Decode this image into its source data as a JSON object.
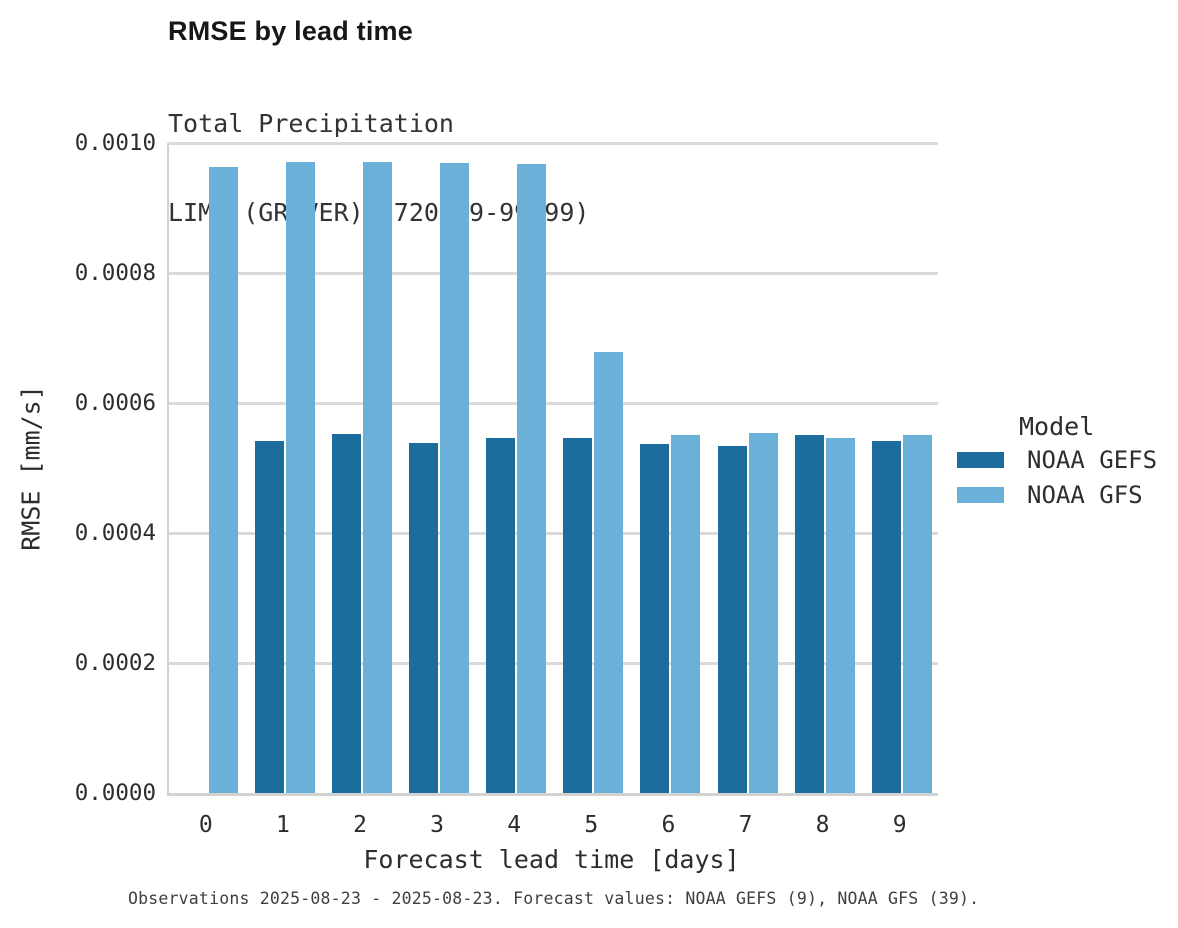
{
  "header": {
    "title": "RMSE by lead time",
    "subtitle_line1": "Total Precipitation",
    "subtitle_line2": "LIMA (GROVER) (720989-99999)"
  },
  "axes": {
    "x_title": "Forecast lead time [days]",
    "y_title": "RMSE [mm/s]"
  },
  "legend": {
    "title": "Model",
    "entries": [
      {
        "label": "NOAA GEFS",
        "color": "#1d6d9c"
      },
      {
        "label": "NOAA GFS",
        "color": "#6ab0d8"
      }
    ]
  },
  "footer": {
    "caption": "Observations 2025-08-23 - 2025-08-23. Forecast values: NOAA GEFS (9), NOAA GFS (39)."
  },
  "chart_data": {
    "type": "bar",
    "title": "RMSE by lead time",
    "subtitle": [
      "Total Precipitation",
      "LIMA (GROVER) (720989-99999)"
    ],
    "xlabel": "Forecast lead time [days]",
    "ylabel": "RMSE [mm/s]",
    "categories": [
      "0",
      "1",
      "2",
      "3",
      "4",
      "5",
      "6",
      "7",
      "8",
      "9"
    ],
    "series": [
      {
        "name": "NOAA GEFS",
        "color": "#1d6d9c",
        "values": [
          null,
          0.000542,
          0.000552,
          0.000538,
          0.000546,
          0.000547,
          0.000537,
          0.000534,
          0.000551,
          0.000542
        ]
      },
      {
        "name": "NOAA GFS",
        "color": "#6ab0d8",
        "values": [
          0.000963,
          0.000971,
          0.000971,
          0.000969,
          0.000968,
          0.000678,
          0.000551,
          0.000554,
          0.000546,
          0.000551
        ]
      }
    ],
    "ylim": [
      0,
      0.001
    ],
    "ytick_labels": [
      "0.0000",
      "0.0002",
      "0.0004",
      "0.0006",
      "0.0008",
      "0.0010"
    ],
    "grid": true,
    "legend_title": "Model",
    "legend_position": "right"
  }
}
